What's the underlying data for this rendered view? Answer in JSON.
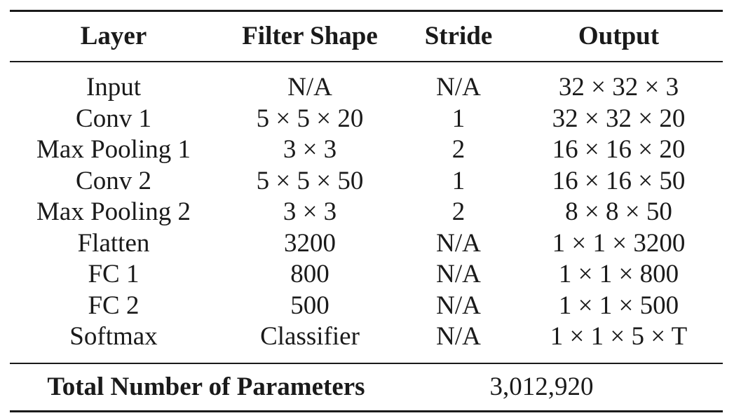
{
  "table": {
    "headers": [
      "Layer",
      "Filter Shape",
      "Stride",
      "Output"
    ],
    "rows": [
      [
        "Input",
        "N/A",
        "N/A",
        "32 × 32 × 3"
      ],
      [
        "Conv 1",
        "5 × 5 × 20",
        "1",
        "32 × 32 × 20"
      ],
      [
        "Max Pooling 1",
        "3 × 3",
        "2",
        "16 × 16 × 20"
      ],
      [
        "Conv 2",
        "5 × 5 × 50",
        "1",
        "16 × 16 × 50"
      ],
      [
        "Max Pooling 2",
        "3 × 3",
        "2",
        "8 × 8 × 50"
      ],
      [
        "Flatten",
        "3200",
        "N/A",
        "1 × 1 × 3200"
      ],
      [
        "FC 1",
        "800",
        "N/A",
        "1 × 1 × 800"
      ],
      [
        "FC 2",
        "500",
        "N/A",
        "1 × 1 × 500"
      ],
      [
        "Softmax",
        "Classifier",
        "N/A",
        "1 × 1 × 5 × T"
      ]
    ],
    "footer": {
      "label": "Total Number of Parameters",
      "value": "3,012,920"
    }
  }
}
